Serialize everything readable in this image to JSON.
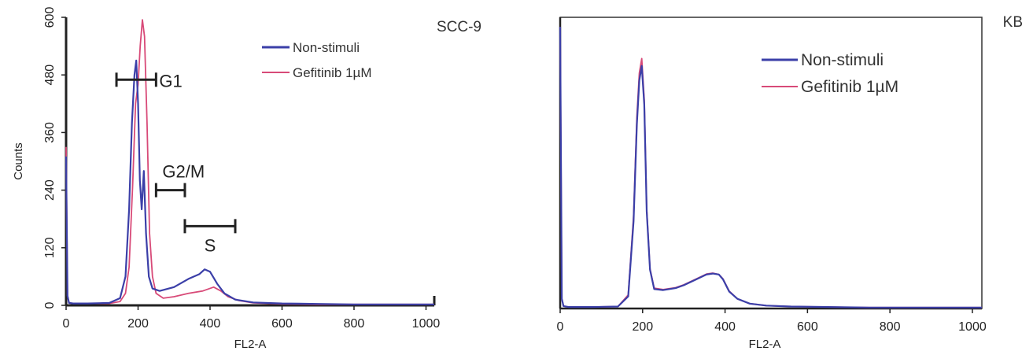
{
  "colors": {
    "non_stimuli": "#3b3fa8",
    "gefitinib": "#d84a78",
    "axis": "#222222",
    "gate": "#222222"
  },
  "chart_data": [
    {
      "type": "line",
      "panel_label": "SCC-9",
      "xlabel": "FL2-A",
      "ylabel": "Counts",
      "xlim": [
        0,
        1023
      ],
      "ylim": [
        0,
        600
      ],
      "xticks": [
        0,
        200,
        400,
        600,
        800,
        1000
      ],
      "yticks": [
        0,
        120,
        240,
        360,
        480,
        600
      ],
      "legend": [
        "Non-stimuli",
        "Gefitinib 1µM"
      ],
      "legend_position": "top-right",
      "series": [
        {
          "name": "Non-stimuli",
          "x": [
            0,
            4,
            8,
            20,
            60,
            120,
            150,
            165,
            175,
            183,
            190,
            195,
            200,
            205,
            210,
            216,
            222,
            230,
            240,
            260,
            300,
            340,
            370,
            385,
            400,
            420,
            440,
            470,
            520,
            600,
            700,
            800,
            900,
            1000,
            1023
          ],
          "y": [
            310,
            20,
            5,
            4,
            4,
            5,
            15,
            60,
            200,
            380,
            480,
            510,
            420,
            260,
            200,
            280,
            150,
            60,
            35,
            30,
            38,
            55,
            65,
            75,
            70,
            45,
            25,
            12,
            6,
            4,
            3,
            2,
            2,
            2,
            2
          ]
        },
        {
          "name": "Gefitinib 1µM",
          "x": [
            0,
            4,
            8,
            20,
            60,
            120,
            150,
            165,
            175,
            185,
            193,
            200,
            206,
            212,
            218,
            225,
            232,
            240,
            250,
            270,
            300,
            340,
            380,
            410,
            430,
            450,
            480,
            520,
            600,
            700,
            800,
            900,
            1000,
            1023
          ],
          "y": [
            330,
            20,
            5,
            4,
            4,
            4,
            8,
            25,
            80,
            250,
            420,
            460,
            540,
            595,
            560,
            380,
            150,
            60,
            25,
            15,
            18,
            25,
            30,
            38,
            30,
            18,
            10,
            5,
            3,
            2,
            2,
            2,
            2,
            2
          ]
        }
      ],
      "annotations": [
        {
          "label": "G1",
          "range": [
            140,
            250
          ],
          "y": 470
        },
        {
          "label": "G2/M",
          "range": [
            250,
            330
          ],
          "y": 240
        },
        {
          "label": "S",
          "range": [
            330,
            470
          ],
          "y": 165
        }
      ]
    },
    {
      "type": "line",
      "panel_label": "KB",
      "xlabel": "FL2-A",
      "xlim": [
        0,
        1023
      ],
      "ylim": [
        0,
        600
      ],
      "xticks": [
        0,
        200,
        400,
        600,
        800,
        1000
      ],
      "legend": [
        "Non-stimuli",
        "Gefitinib 1µM"
      ],
      "legend_position": "top-right",
      "series": [
        {
          "name": "Non-stimuli",
          "x": [
            0,
            4,
            8,
            20,
            80,
            140,
            165,
            178,
            186,
            192,
            198,
            204,
            210,
            218,
            228,
            250,
            280,
            300,
            330,
            355,
            370,
            385,
            395,
            410,
            430,
            460,
            500,
            560,
            650,
            750,
            850,
            950,
            1023
          ],
          "y": [
            580,
            20,
            5,
            3,
            3,
            4,
            25,
            180,
            380,
            470,
            500,
            420,
            200,
            80,
            40,
            38,
            42,
            48,
            60,
            70,
            72,
            70,
            60,
            35,
            20,
            10,
            6,
            4,
            3,
            2,
            2,
            2,
            2
          ]
        },
        {
          "name": "Gefitinib 1µM",
          "x": [
            0,
            4,
            8,
            20,
            80,
            140,
            165,
            178,
            186,
            192,
            198,
            204,
            210,
            218,
            228,
            250,
            280,
            300,
            330,
            355,
            370,
            385,
            395,
            410,
            430,
            460,
            500,
            560,
            650,
            750,
            850,
            950,
            1023
          ],
          "y": [
            580,
            20,
            5,
            3,
            3,
            4,
            28,
            190,
            395,
            485,
            515,
            430,
            205,
            82,
            42,
            39,
            43,
            49,
            61,
            71,
            73,
            70,
            61,
            36,
            20,
            10,
            6,
            4,
            3,
            2,
            2,
            2,
            2
          ]
        }
      ]
    }
  ]
}
